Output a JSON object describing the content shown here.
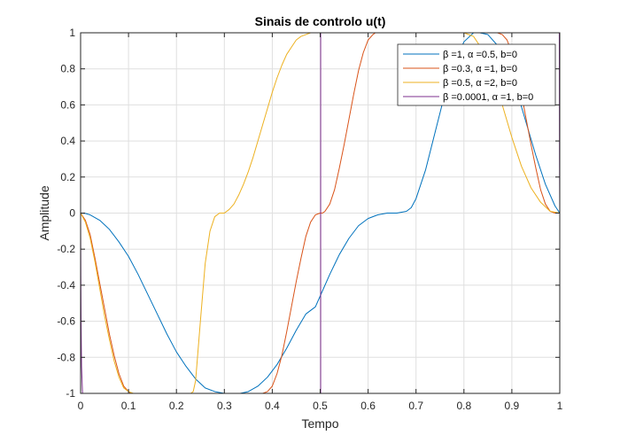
{
  "chart_data": {
    "type": "line",
    "title": "Sinais de controlo u(t)",
    "xlabel": "Tempo",
    "ylabel": "Amplitude",
    "xlim": [
      0,
      1
    ],
    "ylim": [
      -1,
      1
    ],
    "xticks": [
      "0",
      "0.1",
      "0.2",
      "0.3",
      "0.4",
      "0.5",
      "0.6",
      "0.7",
      "0.8",
      "0.9",
      "1"
    ],
    "yticks": [
      "-1",
      "-0.8",
      "-0.6",
      "-0.4",
      "-0.2",
      "0",
      "0.2",
      "0.4",
      "0.6",
      "0.8",
      "1"
    ],
    "grid": true,
    "legend_position": "top-right",
    "series": [
      {
        "name": "β =1, α =0.5, b=0",
        "color": "#0072BD",
        "x": [
          0,
          0.01,
          0.02,
          0.04,
          0.06,
          0.08,
          0.1,
          0.12,
          0.14,
          0.16,
          0.18,
          0.2,
          0.22,
          0.24,
          0.26,
          0.28,
          0.3,
          0.32,
          0.333,
          0.35,
          0.37,
          0.39,
          0.41,
          0.43,
          0.45,
          0.47,
          0.49,
          0.5,
          0.52,
          0.54,
          0.56,
          0.58,
          0.6,
          0.62,
          0.64,
          0.66,
          0.68,
          0.69,
          0.7,
          0.72,
          0.74,
          0.76,
          0.78,
          0.8,
          0.82,
          0.833,
          0.85,
          0.87,
          0.89,
          0.91,
          0.93,
          0.95,
          0.97,
          0.99,
          1.0
        ],
        "y": [
          0,
          -0.002,
          -0.01,
          -0.04,
          -0.09,
          -0.16,
          -0.24,
          -0.34,
          -0.45,
          -0.56,
          -0.67,
          -0.77,
          -0.85,
          -0.92,
          -0.97,
          -0.99,
          -1.0,
          -1.0,
          -1.0,
          -0.99,
          -0.96,
          -0.91,
          -0.84,
          -0.75,
          -0.65,
          -0.56,
          -0.52,
          -0.46,
          -0.34,
          -0.23,
          -0.14,
          -0.07,
          -0.03,
          -0.01,
          0.0,
          0.0,
          0.01,
          0.03,
          0.08,
          0.24,
          0.45,
          0.66,
          0.83,
          0.95,
          1.0,
          1.0,
          0.99,
          0.93,
          0.83,
          0.68,
          0.5,
          0.32,
          0.16,
          0.04,
          0.0
        ]
      },
      {
        "name": "β =0.3, α =1, b=0",
        "color": "#D95319",
        "x": [
          0,
          0.01,
          0.02,
          0.03,
          0.04,
          0.05,
          0.06,
          0.07,
          0.08,
          0.09,
          0.1,
          0.105,
          0.11,
          0.12,
          0.14,
          0.2,
          0.3,
          0.38,
          0.39,
          0.4,
          0.41,
          0.42,
          0.43,
          0.44,
          0.45,
          0.46,
          0.47,
          0.48,
          0.49,
          0.5,
          0.505,
          0.51,
          0.52,
          0.53,
          0.54,
          0.55,
          0.56,
          0.57,
          0.58,
          0.59,
          0.6,
          0.61,
          0.615,
          0.7,
          0.8,
          0.87,
          0.88,
          0.89,
          0.9,
          0.91,
          0.92,
          0.93,
          0.94,
          0.95,
          0.96,
          0.97,
          0.98,
          0.99,
          1.0
        ],
        "y": [
          0,
          -0.04,
          -0.12,
          -0.25,
          -0.39,
          -0.53,
          -0.67,
          -0.79,
          -0.89,
          -0.96,
          -0.99,
          -1.0,
          -1.0,
          -1.0,
          -1.0,
          -1.0,
          -1.0,
          -1.0,
          -0.99,
          -0.96,
          -0.89,
          -0.79,
          -0.66,
          -0.52,
          -0.38,
          -0.25,
          -0.13,
          -0.05,
          -0.01,
          0.0,
          0.0,
          0.01,
          0.05,
          0.13,
          0.25,
          0.38,
          0.52,
          0.66,
          0.79,
          0.89,
          0.96,
          0.99,
          1.0,
          1.0,
          1.0,
          1.0,
          0.99,
          0.96,
          0.89,
          0.79,
          0.66,
          0.52,
          0.38,
          0.25,
          0.13,
          0.05,
          0.01,
          0.0,
          0.0
        ]
      },
      {
        "name": "β =0.5, α =2, b=0",
        "color": "#EDB120",
        "x": [
          0,
          0.01,
          0.02,
          0.03,
          0.04,
          0.05,
          0.06,
          0.07,
          0.08,
          0.09,
          0.1,
          0.11,
          0.12,
          0.2,
          0.23,
          0.235,
          0.24,
          0.25,
          0.26,
          0.27,
          0.28,
          0.29,
          0.3,
          0.31,
          0.32,
          0.33,
          0.34,
          0.35,
          0.36,
          0.37,
          0.38,
          0.39,
          0.4,
          0.41,
          0.42,
          0.43,
          0.44,
          0.45,
          0.46,
          0.47,
          0.48,
          0.49,
          0.5,
          0.52,
          0.8,
          0.82,
          0.84,
          0.86,
          0.88,
          0.9,
          0.92,
          0.94,
          0.96,
          0.98,
          1.0
        ],
        "y": [
          0,
          -0.05,
          -0.14,
          -0.27,
          -0.42,
          -0.57,
          -0.7,
          -0.82,
          -0.91,
          -0.97,
          -0.99,
          -1.0,
          -1.0,
          -1.0,
          -1.0,
          -0.99,
          -0.93,
          -0.6,
          -0.28,
          -0.1,
          -0.02,
          0.0,
          0.0,
          0.02,
          0.05,
          0.1,
          0.16,
          0.23,
          0.31,
          0.4,
          0.49,
          0.58,
          0.67,
          0.75,
          0.82,
          0.88,
          0.92,
          0.96,
          0.98,
          0.99,
          1.0,
          1.0,
          1.0,
          1.0,
          1.0,
          0.98,
          0.9,
          0.77,
          0.6,
          0.42,
          0.26,
          0.14,
          0.06,
          0.01,
          0.0
        ]
      },
      {
        "name": "β =0.0001, α =1, b=0",
        "color": "#7E2F8E",
        "x": [
          0,
          0.0005,
          0.001,
          0.002,
          0.004,
          0.004,
          0.499,
          0.501,
          0.501,
          0.999,
          0.9995,
          1.0
        ],
        "y": [
          0,
          -0.36,
          -0.6,
          -0.85,
          -1.0,
          -1.0,
          -1.0,
          -1.0,
          1.0,
          1.0,
          0.3,
          0.0
        ]
      }
    ]
  }
}
